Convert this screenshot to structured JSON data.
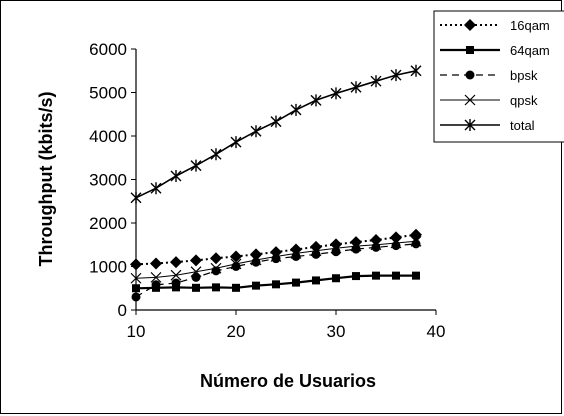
{
  "chart_data": {
    "type": "line",
    "xlabel": "Número de Usuarios",
    "ylabel": "Throughput (kbits/s)",
    "xlim": [
      10,
      40
    ],
    "ylim": [
      0,
      6000
    ],
    "xticks": [
      10,
      20,
      30,
      40
    ],
    "yticks": [
      0,
      1000,
      2000,
      3000,
      4000,
      5000,
      6000
    ],
    "xtick_labels": [
      "10",
      "20",
      "30",
      "40"
    ],
    "ytick_labels": [
      "0",
      "1000",
      "2000",
      "3000",
      "4000",
      "5000",
      "6000"
    ],
    "grid": false,
    "legend_position": "top-right",
    "x": [
      10,
      12,
      14,
      16,
      18,
      20,
      22,
      24,
      26,
      28,
      30,
      32,
      34,
      36,
      38
    ],
    "series": [
      {
        "name": "16qam",
        "line": "dotted",
        "marker": "diamond",
        "values": [
          1050,
          1070,
          1100,
          1140,
          1190,
          1230,
          1280,
          1330,
          1390,
          1450,
          1510,
          1560,
          1610,
          1670,
          1730
        ]
      },
      {
        "name": "64qam",
        "line": "solid-bold",
        "marker": "square",
        "values": [
          500,
          510,
          520,
          510,
          520,
          510,
          560,
          590,
          630,
          680,
          730,
          780,
          790,
          790,
          790
        ]
      },
      {
        "name": "bpsk",
        "line": "dashed",
        "marker": "circle",
        "values": [
          300,
          580,
          620,
          750,
          900,
          1000,
          1100,
          1180,
          1230,
          1280,
          1340,
          1400,
          1440,
          1480,
          1520
        ]
      },
      {
        "name": "qpsk",
        "line": "solid-thin",
        "marker": "x",
        "values": [
          730,
          750,
          800,
          880,
          960,
          1060,
          1150,
          1230,
          1300,
          1360,
          1420,
          1470,
          1500,
          1540,
          1580
        ]
      },
      {
        "name": "total",
        "line": "solid",
        "marker": "asterisk",
        "values": [
          2580,
          2800,
          3080,
          3320,
          3580,
          3860,
          4110,
          4330,
          4600,
          4820,
          4980,
          5120,
          5260,
          5400,
          5500
        ]
      }
    ]
  }
}
